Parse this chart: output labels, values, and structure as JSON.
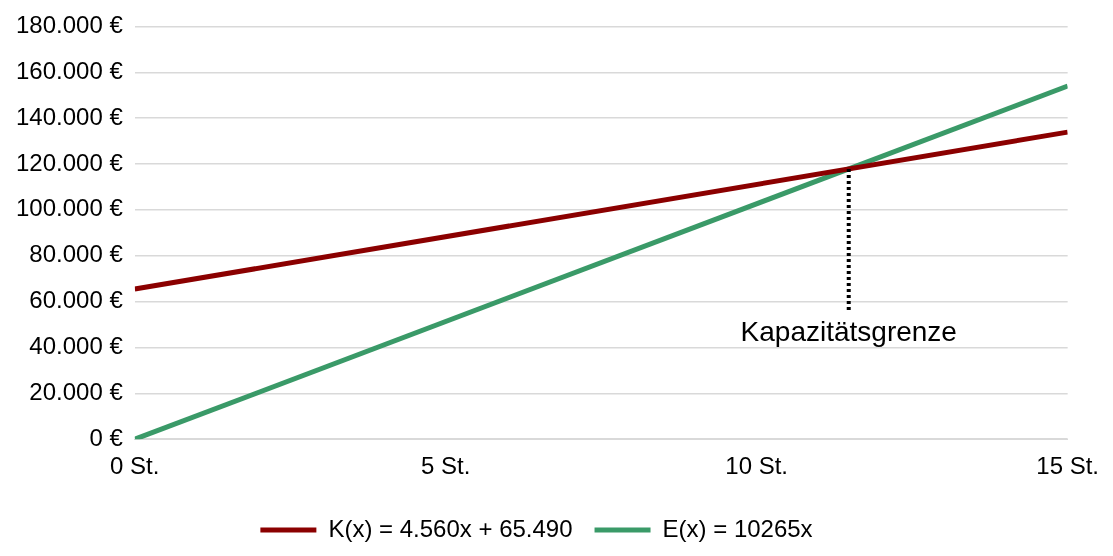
{
  "chart_data": {
    "type": "line",
    "x": [
      0,
      15
    ],
    "series": [
      {
        "name": "K(x) = 4.560x + 65.490",
        "color": "#8b0000",
        "values": [
          65500,
          133900
        ]
      },
      {
        "name": "E(x) = 10265x",
        "color": "#3a9a68",
        "values": [
          0,
          154000
        ]
      }
    ],
    "xlim": [
      0,
      15
    ],
    "xticks": [
      {
        "value": 0,
        "label": "0 St."
      },
      {
        "value": 5,
        "label": "5 St."
      },
      {
        "value": 10,
        "label": "10 St."
      },
      {
        "value": 15,
        "label": "15 St."
      }
    ],
    "ylim": [
      0,
      180000
    ],
    "yticks": [
      {
        "value": 0,
        "label": "0 €"
      },
      {
        "value": 20000,
        "label": "20.000 €"
      },
      {
        "value": 40000,
        "label": "40.000 €"
      },
      {
        "value": 60000,
        "label": "60.000 €"
      },
      {
        "value": 80000,
        "label": "80.000 €"
      },
      {
        "value": 100000,
        "label": "100.000 €"
      },
      {
        "value": 120000,
        "label": "120.000 €"
      },
      {
        "value": 140000,
        "label": "140.000 €"
      },
      {
        "value": 160000,
        "label": "160.000 €"
      },
      {
        "value": 180000,
        "label": "180.000 €"
      }
    ],
    "ref_lines": [
      {
        "axis": "x",
        "value": 11.48,
        "label": "Kapazitätsgrenze",
        "color": "#000000",
        "line_style": "dotted"
      }
    ],
    "grid": "y",
    "legend": "bottom",
    "marker": "none",
    "line_style": "solid"
  }
}
